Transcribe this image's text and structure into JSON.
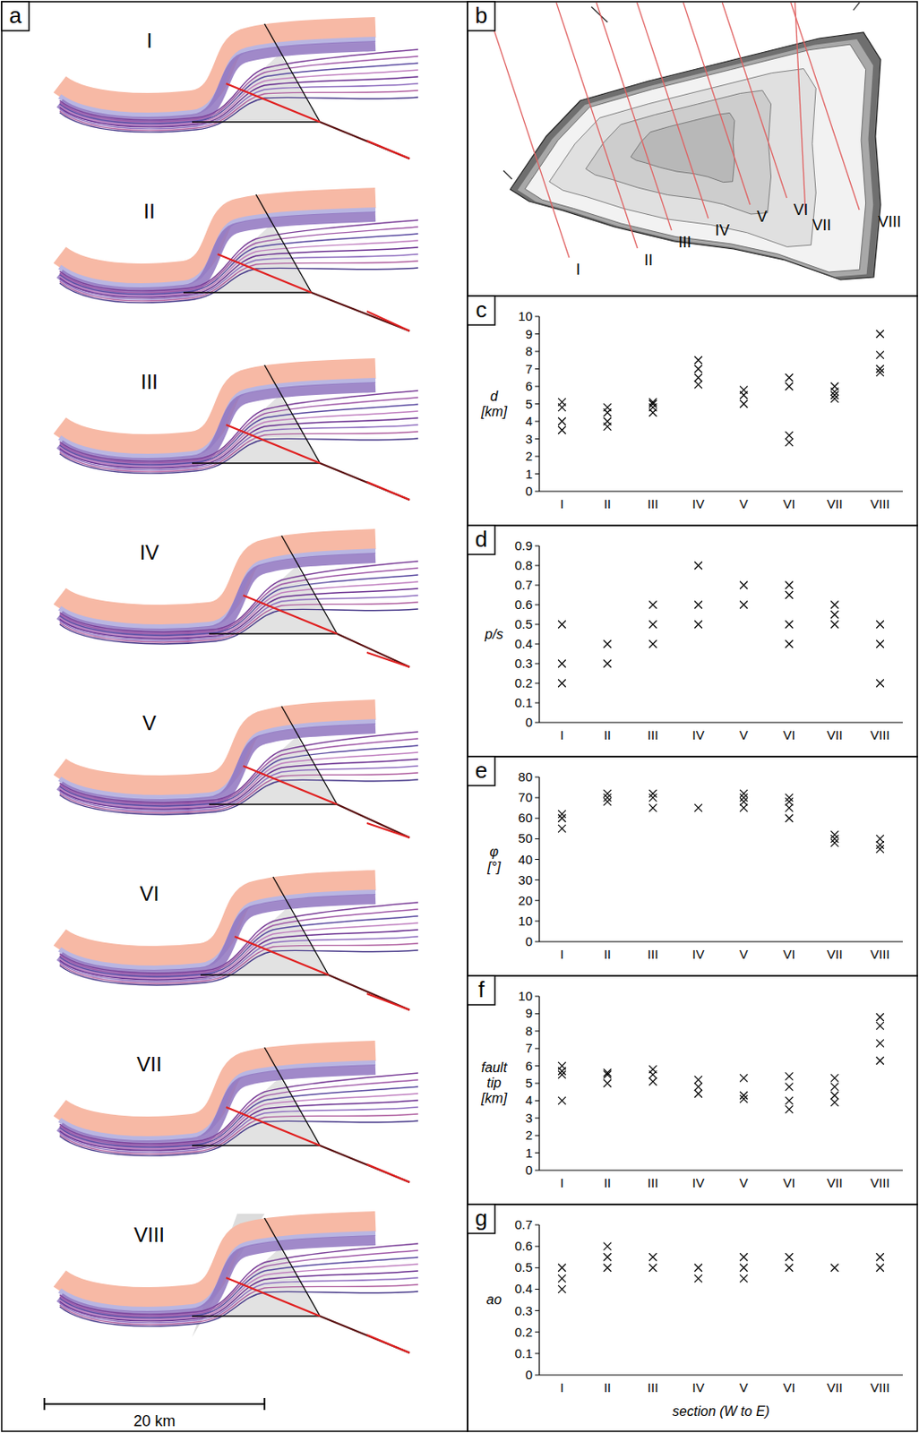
{
  "panel_a": {
    "label": "a",
    "sections": [
      "I",
      "II",
      "III",
      "IV",
      "V",
      "VI",
      "VII",
      "VIII"
    ],
    "scale_bar": "20 km"
  },
  "panel_b": {
    "label": "b",
    "section_lines": [
      "I",
      "II",
      "III",
      "IV",
      "V",
      "VI",
      "VII",
      "VIII"
    ]
  },
  "chart_data": [
    {
      "type": "scatter",
      "panel": "c",
      "y_label": "d [km]",
      "marker": "x",
      "color": "#000000",
      "categories": [
        "I",
        "II",
        "III",
        "IV",
        "V",
        "VI",
        "VII",
        "VIII"
      ],
      "series": [
        {
          "values": [
            5.1,
            4.8,
            5.1,
            7.5,
            5.8,
            6.5,
            6.0,
            9.0
          ]
        },
        {
          "values": [
            4.8,
            4.5,
            5.0,
            7.0,
            5.5,
            6.0,
            5.7,
            7.8
          ]
        },
        {
          "values": [
            4.0,
            4.0,
            4.8,
            6.5,
            5.0,
            3.2,
            5.5,
            7.0
          ]
        },
        {
          "values": [
            3.5,
            3.7,
            4.5,
            6.1,
            null,
            2.8,
            5.3,
            6.8
          ]
        }
      ],
      "ylim": [
        0,
        10
      ],
      "yticks": [
        0,
        1,
        2,
        3,
        4,
        5,
        6,
        7,
        8,
        9,
        10
      ]
    },
    {
      "type": "scatter",
      "panel": "d",
      "y_label": "p/s",
      "marker": "x",
      "color": "#000000",
      "categories": [
        "I",
        "II",
        "III",
        "IV",
        "V",
        "VI",
        "VII",
        "VIII"
      ],
      "series": [
        {
          "values": [
            0.5,
            0.4,
            0.6,
            0.8,
            0.7,
            0.7,
            0.6,
            0.5
          ]
        },
        {
          "values": [
            0.3,
            0.3,
            0.5,
            0.6,
            0.6,
            0.65,
            0.55,
            0.4
          ]
        },
        {
          "values": [
            0.2,
            null,
            0.4,
            0.5,
            null,
            0.5,
            0.5,
            0.2
          ]
        },
        {
          "values": [
            null,
            null,
            null,
            null,
            null,
            0.4,
            null,
            null
          ]
        }
      ],
      "ylim": [
        0,
        0.9
      ],
      "yticks": [
        0,
        0.1,
        0.2,
        0.3,
        0.4,
        0.5,
        0.6,
        0.7,
        0.8,
        0.9
      ]
    },
    {
      "type": "scatter",
      "panel": "e",
      "y_label": "φ [°]",
      "marker": "x",
      "color": "#000000",
      "categories": [
        "I",
        "II",
        "III",
        "IV",
        "V",
        "VI",
        "VII",
        "VIII"
      ],
      "series": [
        {
          "values": [
            62,
            72,
            72,
            65,
            72,
            70,
            52,
            50
          ]
        },
        {
          "values": [
            60,
            70,
            70,
            null,
            70,
            68,
            50,
            47
          ]
        },
        {
          "values": [
            55,
            68,
            65,
            null,
            68,
            65,
            48,
            45
          ]
        },
        {
          "values": [
            null,
            null,
            null,
            null,
            65,
            60,
            null,
            null
          ]
        }
      ],
      "ylim": [
        0,
        80
      ],
      "yticks": [
        0,
        10,
        20,
        30,
        40,
        50,
        60,
        70,
        80
      ]
    },
    {
      "type": "scatter",
      "panel": "f",
      "y_label": "fault tip [km]",
      "marker": "x",
      "color": "#000000",
      "categories": [
        "I",
        "II",
        "III",
        "IV",
        "V",
        "VI",
        "VII",
        "VIII"
      ],
      "series": [
        {
          "values": [
            6.0,
            5.6,
            5.8,
            5.2,
            5.3,
            5.4,
            5.3,
            8.8
          ]
        },
        {
          "values": [
            5.7,
            5.5,
            5.5,
            4.8,
            4.3,
            4.8,
            4.8,
            8.3
          ]
        },
        {
          "values": [
            5.5,
            5.0,
            5.1,
            4.4,
            4.1,
            4.0,
            4.3,
            7.3
          ]
        },
        {
          "values": [
            4.0,
            null,
            null,
            null,
            null,
            3.5,
            3.9,
            6.3
          ]
        }
      ],
      "ylim": [
        0,
        10
      ],
      "yticks": [
        0,
        1,
        2,
        3,
        4,
        5,
        6,
        7,
        8,
        9,
        10
      ]
    },
    {
      "type": "scatter",
      "panel": "g",
      "y_label": "ao",
      "x_label": "section (W to E)",
      "marker": "x",
      "color": "#000000",
      "categories": [
        "I",
        "II",
        "III",
        "IV",
        "V",
        "VI",
        "VII",
        "VIII"
      ],
      "series": [
        {
          "values": [
            0.5,
            0.6,
            0.55,
            0.5,
            0.55,
            0.55,
            0.5,
            0.55
          ]
        },
        {
          "values": [
            0.45,
            0.55,
            0.5,
            0.45,
            0.5,
            0.5,
            null,
            0.5
          ]
        },
        {
          "values": [
            0.4,
            0.5,
            null,
            null,
            0.45,
            null,
            null,
            null
          ]
        }
      ],
      "ylim": [
        0,
        0.7
      ],
      "yticks": [
        0,
        0.1,
        0.2,
        0.3,
        0.4,
        0.5,
        0.6,
        0.7
      ]
    }
  ]
}
